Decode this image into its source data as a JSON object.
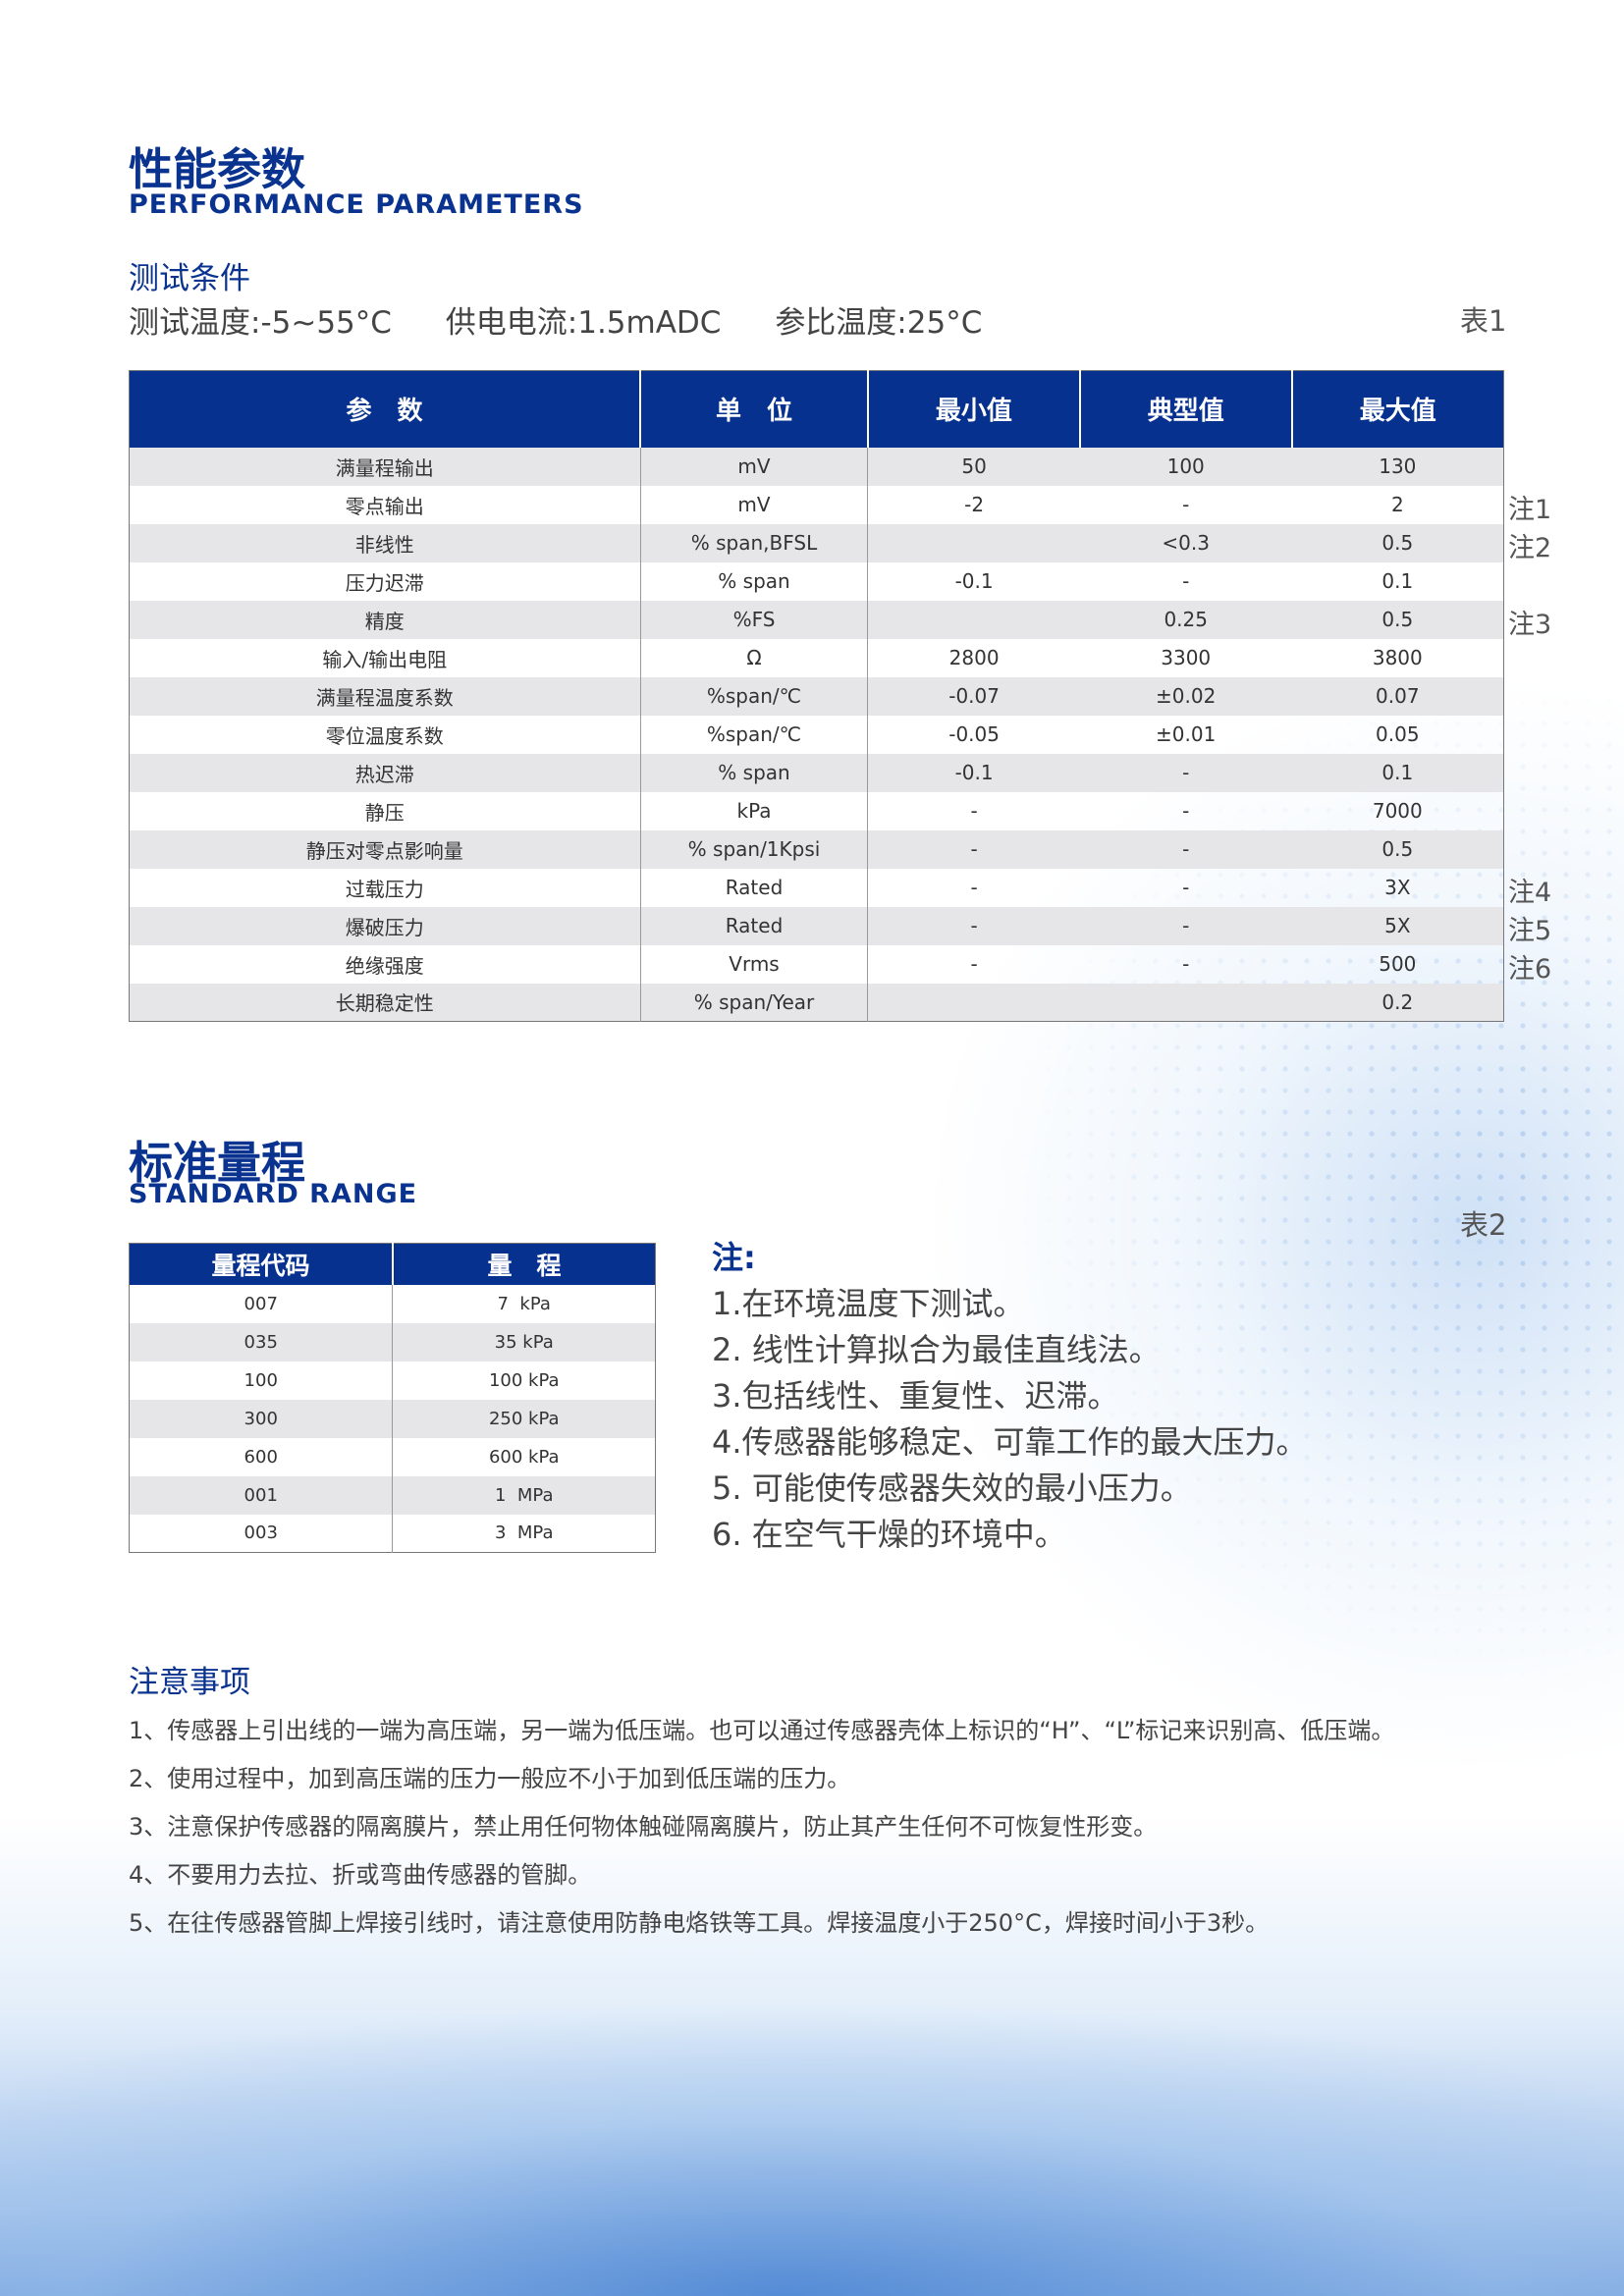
{
  "section1": {
    "title_cn": "性能参数",
    "title_en": "PERFORMANCE PARAMETERS",
    "sub": "测试条件",
    "conditions": [
      "测试温度:-5~55°C",
      "供电电流:1.5mADC",
      "参比温度:25°C"
    ],
    "table_tag": "表1"
  },
  "table1": {
    "headers": [
      "参　数",
      "单　位",
      "最小值",
      "典型值",
      "最大值"
    ],
    "rows": [
      [
        "满量程输出",
        "mV",
        "50",
        "100",
        "130",
        ""
      ],
      [
        "零点输出",
        "mV",
        "-2",
        "-",
        "2",
        "注1"
      ],
      [
        "非线性",
        "% span,BFSL",
        "",
        "<0.3",
        "0.5",
        "注2"
      ],
      [
        "压力迟滞",
        "% span",
        "-0.1",
        "-",
        "0.1",
        ""
      ],
      [
        "精度",
        "%FS",
        "",
        "0.25",
        "0.5",
        "注3"
      ],
      [
        "输入/输出电阻",
        "Ω",
        "2800",
        "3300",
        "3800",
        ""
      ],
      [
        "满量程温度系数",
        "%span/℃",
        "-0.07",
        "±0.02",
        "0.07",
        ""
      ],
      [
        "零位温度系数",
        "%span/℃",
        "-0.05",
        "±0.01",
        "0.05",
        ""
      ],
      [
        "热迟滞",
        "% span",
        "-0.1",
        "-",
        "0.1",
        ""
      ],
      [
        "静压",
        "kPa",
        "-",
        "-",
        "7000",
        ""
      ],
      [
        "静压对零点影响量",
        "% span/1Kpsi",
        "-",
        "-",
        "0.5",
        ""
      ],
      [
        "过载压力",
        "Rated",
        "-",
        "-",
        "3X",
        "注4"
      ],
      [
        "爆破压力",
        "Rated",
        "-",
        "-",
        "5X",
        "注5"
      ],
      [
        "绝缘强度",
        "Vrms",
        "-",
        "-",
        "500",
        "注6"
      ],
      [
        "长期稳定性",
        "% span/Year",
        "",
        "",
        "0.2",
        ""
      ]
    ]
  },
  "section2": {
    "title_cn": "标准量程",
    "title_en": "STANDARD RANGE",
    "table_tag": "表2"
  },
  "table2": {
    "headers": [
      "量程代码",
      "量　程"
    ],
    "rows": [
      [
        "007",
        "7  kPa"
      ],
      [
        "035",
        "35 kPa"
      ],
      [
        "100",
        "100 kPa"
      ],
      [
        "300",
        "250 kPa"
      ],
      [
        "600",
        "600 kPa"
      ],
      [
        "001",
        "1  MPa"
      ],
      [
        "003",
        "3  MPa"
      ]
    ]
  },
  "notes": {
    "heading": "注:",
    "items": [
      "1.在环境温度下测试。",
      "2. 线性计算拟合为最佳直线法。",
      "3.包括线性、重复性、迟滞。",
      "4.传感器能够稳定、可靠工作的最大压力。",
      "5. 可能使传感器失效的最小压力。",
      "6. 在空气干燥的环境中。"
    ]
  },
  "caution": {
    "heading": "注意事项",
    "items": [
      "1、传感器上引出线的一端为高压端，另一端为低压端。也可以通过传感器壳体上标识的“H”、“L”标记来识别高、低压端。",
      "2、使用过程中，加到高压端的压力一般应不小于加到低压端的压力。",
      "3、注意保护传感器的隔离膜片，禁止用任何物体触碰隔离膜片，防止其产生任何不可恢复性形变。",
      "4、不要用力去拉、折或弯曲传感器的管脚。",
      "5、在往传感器管脚上焊接引线时，请注意使用防静电烙铁等工具。焊接温度小于250°C，焊接时间小于3秒。"
    ]
  },
  "colors": {
    "brand_blue": "#06318f",
    "row_alt": "#e6e6e9"
  }
}
